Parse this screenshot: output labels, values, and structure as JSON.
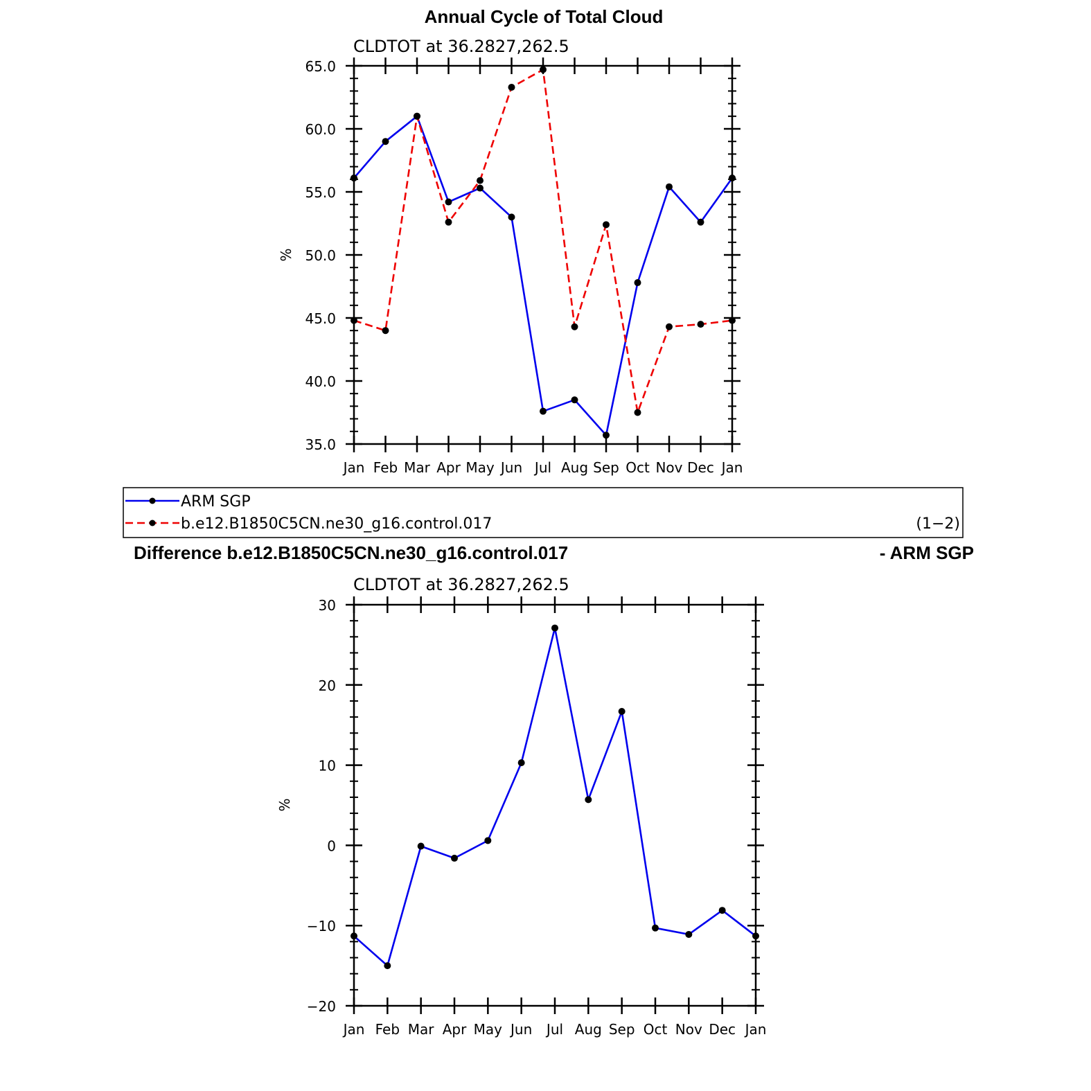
{
  "title": "Annual Cycle of Total Cloud",
  "colors": {
    "obs": "#0000ee",
    "model": "#ee0000",
    "marker": "#000000"
  },
  "legend": {
    "entries": [
      {
        "label": "ARM SGP",
        "color": "#0000ee",
        "dash": "solid"
      },
      {
        "label": "b.e12.B1850C5CN.ne30_g16.control.017",
        "color": "#ee0000",
        "dash": "dashed"
      }
    ],
    "panel_label": "(1−2)"
  },
  "diff_title_left": "Difference b.e12.B1850C5CN.ne30_g16.control.017",
  "diff_title_right": "- ARM SGP",
  "chart_data": [
    {
      "type": "line",
      "title": "CLDTOT at 36.2827,262.5",
      "ylabel": "%",
      "ylim": [
        35,
        65
      ],
      "yticks": [
        35,
        40,
        45,
        50,
        55,
        60,
        65
      ],
      "ytick_labels": [
        "35.0",
        "40.0",
        "45.0",
        "50.0",
        "55.0",
        "60.0",
        "65.0"
      ],
      "categories": [
        "Jan",
        "Feb",
        "Mar",
        "Apr",
        "May",
        "Jun",
        "Jul",
        "Aug",
        "Sep",
        "Oct",
        "Nov",
        "Dec",
        "Jan"
      ],
      "series": [
        {
          "name": "ARM SGP",
          "color": "#0000ee",
          "dash": "solid",
          "values": [
            56.1,
            59.0,
            61.0,
            54.2,
            55.3,
            53.0,
            37.6,
            38.5,
            35.7,
            47.8,
            55.4,
            52.6,
            56.1
          ]
        },
        {
          "name": "b.e12.B1850C5CN.ne30_g16.control.017",
          "color": "#ee0000",
          "dash": "dashed",
          "values": [
            44.8,
            44.0,
            61.0,
            52.6,
            55.9,
            63.3,
            64.7,
            44.3,
            52.4,
            37.5,
            44.3,
            44.5,
            44.8
          ]
        }
      ]
    },
    {
      "type": "line",
      "title": "CLDTOT at 36.2827,262.5",
      "ylabel": "%",
      "ylim": [
        -20,
        30
      ],
      "yticks": [
        -20,
        -10,
        0,
        10,
        20,
        30
      ],
      "ytick_labels": [
        "−20",
        "−10",
        "0",
        "10",
        "20",
        "30"
      ],
      "categories": [
        "Jan",
        "Feb",
        "Mar",
        "Apr",
        "May",
        "Jun",
        "Jul",
        "Aug",
        "Sep",
        "Oct",
        "Nov",
        "Dec",
        "Jan"
      ],
      "series": [
        {
          "color": "#0000ee",
          "dash": "solid",
          "values": [
            -11.3,
            -15.0,
            -0.1,
            -1.6,
            0.6,
            10.3,
            27.1,
            5.7,
            16.7,
            -10.3,
            -11.1,
            -8.1,
            -11.3
          ]
        }
      ]
    }
  ]
}
